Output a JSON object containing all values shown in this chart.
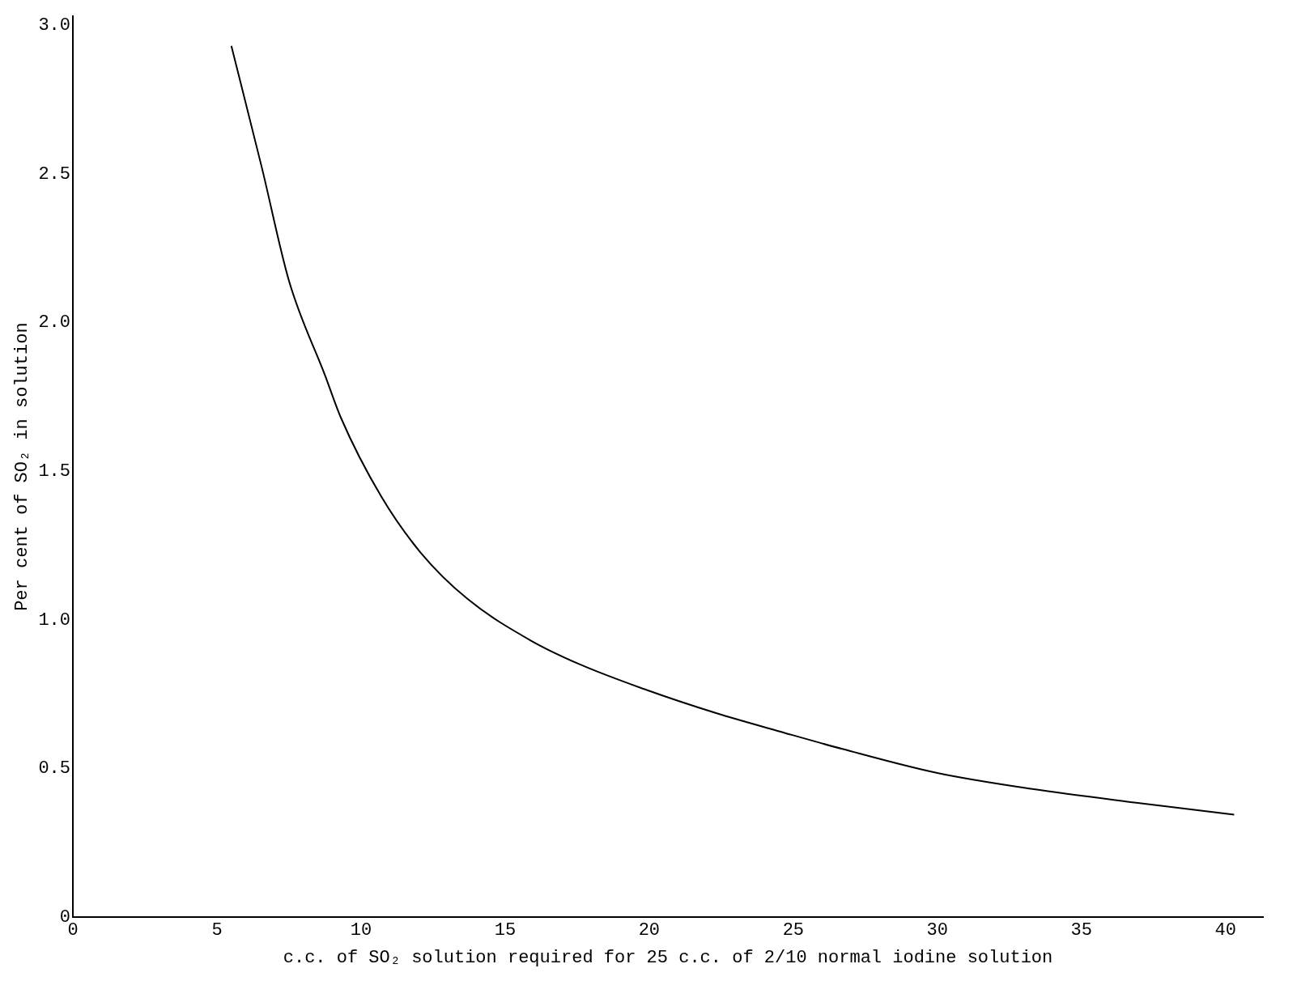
{
  "chart_data": {
    "type": "line",
    "xlabel": "c.c. of SO₂ solution required for 25 c.c. of 2/10 normal iodine solution",
    "ylabel": "Per cent of SO₂ in solution",
    "x": [
      5.5,
      6.56,
      7.5,
      8.76,
      9.3,
      10.7,
      12.07,
      13.7,
      15.9,
      17.6,
      19.8,
      22.3,
      24.7,
      26.7,
      30.0,
      33.3,
      36.9,
      40.3
    ],
    "series": [
      {
        "color": "#000000",
        "values": [
          2.93,
          2.52,
          2.14,
          1.82,
          1.68,
          1.415,
          1.226,
          1.07,
          0.93,
          0.85,
          0.768,
          0.687,
          0.62,
          0.566,
          0.485,
          0.431,
          0.385,
          0.345
        ]
      }
    ],
    "xlim": [
      0,
      41.3
    ],
    "ylim": [
      0,
      3.03
    ],
    "xticks": [
      0,
      5,
      10,
      15,
      20,
      25,
      30,
      35,
      40
    ],
    "yticks": [
      0,
      {
        "value": 0.5,
        "label": "0.5"
      },
      {
        "value": 1,
        "label": "1.0"
      },
      {
        "value": 1.5,
        "label": "1.5"
      },
      {
        "value": 2,
        "label": "2.0"
      },
      {
        "value": 2.5,
        "label": "2.5"
      },
      {
        "value": 3,
        "label": "3.0"
      }
    ],
    "grid": false,
    "legend": false,
    "marker": "none",
    "line_style": "solid"
  }
}
